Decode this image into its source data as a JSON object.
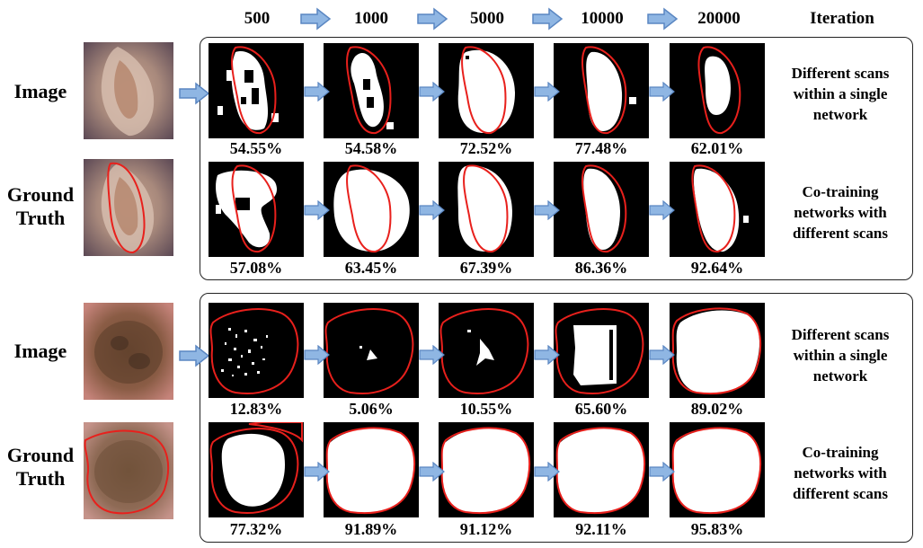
{
  "header": {
    "iterations": [
      "500",
      "1000",
      "5000",
      "10000",
      "20000"
    ],
    "iteration_label": "Iteration"
  },
  "labels": {
    "image": "Image",
    "ground_truth_line1": "Ground",
    "ground_truth_line2": "Truth"
  },
  "descriptions": {
    "single": [
      "Different scans",
      "within a single",
      "network"
    ],
    "cotrain": [
      "Co-training",
      "networks with",
      "different scans"
    ]
  },
  "groups": [
    {
      "rows": [
        {
          "kind": "single",
          "percents": [
            "54.55%",
            "54.58%",
            "72.52%",
            "77.48%",
            "62.01%"
          ]
        },
        {
          "kind": "cotrain",
          "percents": [
            "57.08%",
            "63.45%",
            "67.39%",
            "86.36%",
            "92.64%"
          ]
        }
      ]
    },
    {
      "rows": [
        {
          "kind": "single",
          "percents": [
            "12.83%",
            "5.06%",
            "10.55%",
            "65.60%",
            "89.02%"
          ]
        },
        {
          "kind": "cotrain",
          "percents": [
            "77.32%",
            "91.89%",
            "91.12%",
            "92.11%",
            "95.83%"
          ]
        }
      ]
    }
  ],
  "colors": {
    "contour": "#e8201c",
    "arrow_fill": "#8fb6e3",
    "arrow_stroke": "#5a86c2",
    "mask_bg": "#000000",
    "mask_fg": "#ffffff"
  }
}
